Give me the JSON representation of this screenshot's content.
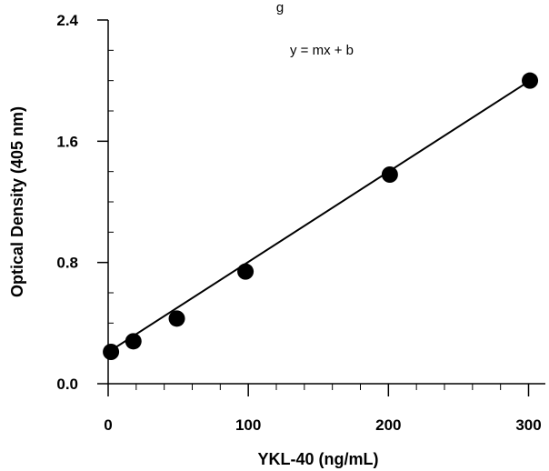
{
  "chart_data": {
    "type": "scatter",
    "title_fragment": "g",
    "xlabel": "YKL-40 (ng/mL)",
    "ylabel": "Optical Density (405 nm)",
    "xlim": [
      0,
      312
    ],
    "ylim": [
      0,
      2.4
    ],
    "x_ticks": [
      0,
      100,
      200,
      300
    ],
    "x_tick_labels": [
      "0",
      "100",
      "200",
      "300"
    ],
    "x_minor_step": 20,
    "y_ticks": [
      0,
      0.8,
      1.6,
      2.4
    ],
    "y_tick_labels": [
      "0.0",
      "0.8",
      "1.6",
      "2.4"
    ],
    "y_minor_step": 0.2,
    "annotation": "y = mx + b",
    "grid": false,
    "series": [
      {
        "points": [
          {
            "x": 2,
            "y": 0.21
          },
          {
            "x": 18,
            "y": 0.28
          },
          {
            "x": 49,
            "y": 0.43
          },
          {
            "x": 98,
            "y": 0.74
          },
          {
            "x": 201,
            "y": 1.38
          },
          {
            "x": 301,
            "y": 2.0
          }
        ],
        "fit_line": {
          "x": [
            2,
            301
          ],
          "y": [
            0.22,
            2.0
          ]
        },
        "color": "#000000"
      }
    ]
  }
}
